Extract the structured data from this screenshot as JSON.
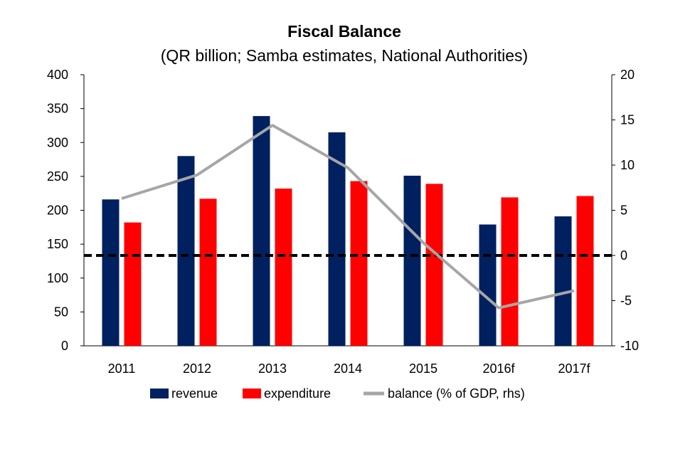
{
  "chart_data": {
    "type": "bar",
    "title": "Fiscal Balance",
    "subtitle": "(QR billion; Samba estimates, National Authorities)",
    "categories": [
      "2011",
      "2012",
      "2013",
      "2014",
      "2015",
      "2016f",
      "2017f"
    ],
    "series": [
      {
        "name": "revenue",
        "type": "bar",
        "axis": "left",
        "color": "#002060",
        "values": [
          216,
          280,
          339,
          315,
          251,
          179,
          191
        ]
      },
      {
        "name": "expenditure",
        "type": "bar",
        "axis": "left",
        "color": "#ff0000",
        "values": [
          182,
          217,
          232,
          243,
          239,
          219,
          221
        ]
      },
      {
        "name": "balance (% of GDP, rhs)",
        "type": "line",
        "axis": "right",
        "color": "#a6a6a6",
        "values": [
          6.3,
          8.9,
          14.4,
          9.7,
          1.4,
          -5.8,
          -3.9
        ]
      }
    ],
    "y_left": {
      "min": 0,
      "max": 400,
      "step": 50,
      "ticks": [
        "0",
        "50",
        "100",
        "150",
        "200",
        "250",
        "300",
        "350",
        "400"
      ]
    },
    "y_right": {
      "min": -10,
      "max": 20,
      "step": 5,
      "ticks": [
        "-10",
        "-5",
        "0",
        "5",
        "10",
        "15",
        "20"
      ]
    },
    "zero_line": {
      "axis": "right",
      "value": 0,
      "style": "dashed",
      "color": "#000000"
    },
    "legend": {
      "placement": "bottom"
    },
    "grid": false,
    "xlabel": "",
    "ylabel": ""
  }
}
